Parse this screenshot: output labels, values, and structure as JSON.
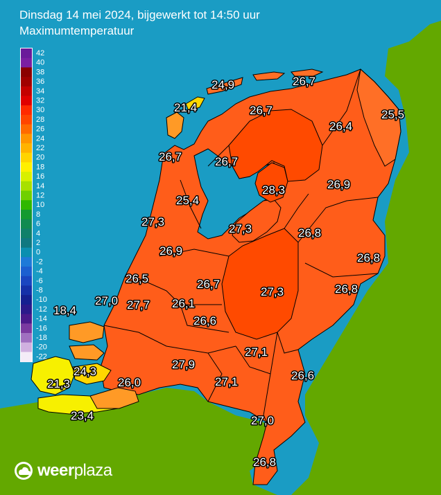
{
  "header": {
    "title": "Dinsdag 14 mei 2024, bijgewerkt tot 14:50 uur",
    "subtitle": "Maximumtemperatuur"
  },
  "legend": {
    "ticks": [
      "42",
      "40",
      "38",
      "36",
      "34",
      "32",
      "30",
      "28",
      "26",
      "24",
      "22",
      "20",
      "18",
      "16",
      "14",
      "12",
      "10",
      "8",
      "6",
      "4",
      "2",
      "0",
      "-2",
      "-4",
      "-6",
      "-8",
      "-10",
      "-12",
      "-14",
      "-16",
      "-18",
      "-20",
      "-22"
    ],
    "colors": {
      "42": "#6a1b9a",
      "40": "#7b1fa2",
      "38": "#8b0000",
      "36": "#a00000",
      "34": "#c40000",
      "32": "#e00000",
      "30": "#ff2a00",
      "28": "#ff4500",
      "26": "#ff6a00",
      "24": "#ff9500",
      "22": "#ffb300",
      "20": "#ffd400",
      "18": "#fff000",
      "16": "#d8f000",
      "14": "#a8e000",
      "12": "#70d000",
      "10": "#2fb800",
      "8": "#149a30",
      "6": "#108a50",
      "4": "#10806a",
      "2": "#0f7880",
      "0": "#0a8fb0",
      "-2": "#1e7ad8",
      "-4": "#1c5fd0",
      "-6": "#1a45c0",
      "-8": "#1530a8",
      "-10": "#152090",
      "-12": "#2b1a8a",
      "-14": "#4a1a8a",
      "-16": "#7a3aa0",
      "-18": "#a070c0",
      "-20": "#d0b0e0",
      "-22": "#f4ecf8"
    }
  },
  "map": {
    "sea_color": "#1a9cc4",
    "land_color": "#63a800",
    "region_colors": {
      "deep": "#ff4a00",
      "main": "#ff5d1a",
      "warm": "#ff6f26",
      "cool": "#ff9a26",
      "cold": "#ffd700",
      "coldest": "#f7f000"
    },
    "stations": [
      {
        "id": "texel-north",
        "value": "21,4"
      },
      {
        "id": "vlieland",
        "value": "24,9"
      },
      {
        "id": "schiermonnikoog",
        "value": "26,7"
      },
      {
        "id": "leeuwarden",
        "value": "26,7"
      },
      {
        "id": "groningen",
        "value": "26,4"
      },
      {
        "id": "nieuw-beerta",
        "value": "25,5"
      },
      {
        "id": "den-helder",
        "value": "26,7"
      },
      {
        "id": "stavoren",
        "value": "26,7"
      },
      {
        "id": "lelystad-north",
        "value": "28,3"
      },
      {
        "id": "hoogeveen",
        "value": "26,9"
      },
      {
        "id": "berkhout",
        "value": "25,4"
      },
      {
        "id": "ijmuiden",
        "value": "27,3"
      },
      {
        "id": "lelystad",
        "value": "27,3"
      },
      {
        "id": "heino",
        "value": "26,8"
      },
      {
        "id": "schiphol",
        "value": "26,9"
      },
      {
        "id": "twenthe",
        "value": "26,8"
      },
      {
        "id": "valkenburg",
        "value": "26,5"
      },
      {
        "id": "de-bilt",
        "value": "26,7"
      },
      {
        "id": "deelen",
        "value": "27,3"
      },
      {
        "id": "hupsel",
        "value": "26,8"
      },
      {
        "id": "hoek-van-holland",
        "value": "27,0"
      },
      {
        "id": "rotterdam",
        "value": "27,7"
      },
      {
        "id": "cabauw",
        "value": "26,1"
      },
      {
        "id": "lichteiland-goeree",
        "value": "18,4"
      },
      {
        "id": "herwijnen",
        "value": "26,6"
      },
      {
        "id": "volkel",
        "value": "27,1"
      },
      {
        "id": "wilhelminadorp",
        "value": "24,3"
      },
      {
        "id": "gilze-rijen",
        "value": "27,9"
      },
      {
        "id": "arcen",
        "value": "26,6"
      },
      {
        "id": "vlissingen",
        "value": "21,3"
      },
      {
        "id": "woensdrecht",
        "value": "26,0"
      },
      {
        "id": "eindhoven",
        "value": "27,1"
      },
      {
        "id": "westdorpe",
        "value": "23,4"
      },
      {
        "id": "ell",
        "value": "27,0"
      },
      {
        "id": "maastricht",
        "value": "26,8"
      }
    ]
  },
  "brand": {
    "name_bold": "weer",
    "name_light": "plaza",
    "icon": "cloud-sun-icon"
  }
}
